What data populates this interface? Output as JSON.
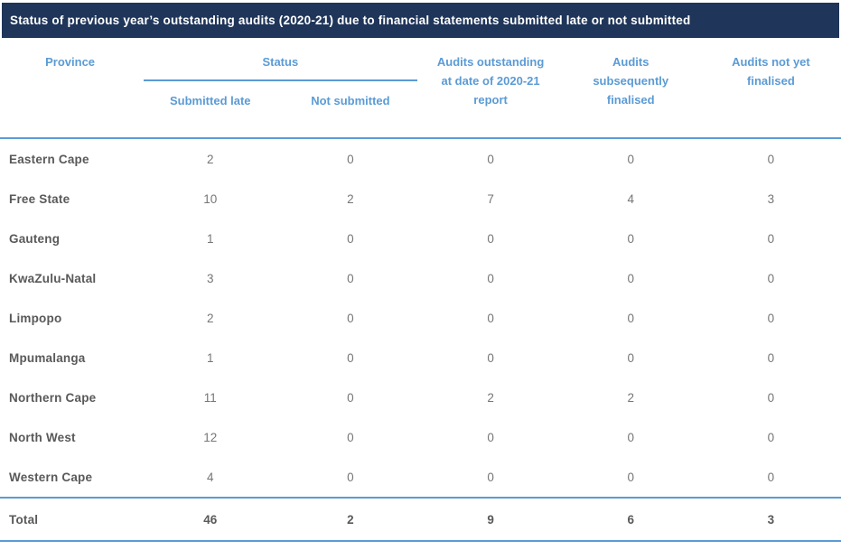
{
  "title": "Status of previous year’s outstanding audits (2020-21) due to financial statements submitted late or not submitted",
  "colors": {
    "title_bar_bg": "#1f3559",
    "title_text": "#ffffff",
    "header_blue": "#5b9bd5",
    "rule_blue": "#5b9bd5",
    "province_text": "#595959",
    "value_text": "#767676"
  },
  "header": {
    "province": "Province",
    "status_group": "Status",
    "submitted_late": "Submitted late",
    "not_submitted": "Not submitted",
    "outstanding": "Audits outstanding at date of 2020-21 report",
    "subsequently_finalised": "Audits subsequently finalised",
    "not_yet_finalised": "Audits not yet finalised"
  },
  "chart_data": {
    "type": "table",
    "title": "Status of previous year’s outstanding audits (2020-21) due to financial statements submitted late or not submitted",
    "columns": [
      "Province",
      "Status – Submitted late",
      "Status – Not submitted",
      "Audits outstanding at date of 2020-21 report",
      "Audits subsequently finalised",
      "Audits not yet finalised"
    ],
    "rows": [
      [
        "Eastern Cape",
        2,
        0,
        0,
        0,
        0
      ],
      [
        "Free State",
        10,
        2,
        7,
        4,
        3
      ],
      [
        "Gauteng",
        1,
        0,
        0,
        0,
        0
      ],
      [
        "KwaZulu-Natal",
        3,
        0,
        0,
        0,
        0
      ],
      [
        "Limpopo",
        2,
        0,
        0,
        0,
        0
      ],
      [
        "Mpumalanga",
        1,
        0,
        0,
        0,
        0
      ],
      [
        "Northern Cape",
        11,
        0,
        2,
        2,
        0
      ],
      [
        "North West",
        12,
        0,
        0,
        0,
        0
      ],
      [
        "Western Cape",
        4,
        0,
        0,
        0,
        0
      ]
    ],
    "total": [
      "Total",
      46,
      2,
      9,
      6,
      3
    ]
  }
}
